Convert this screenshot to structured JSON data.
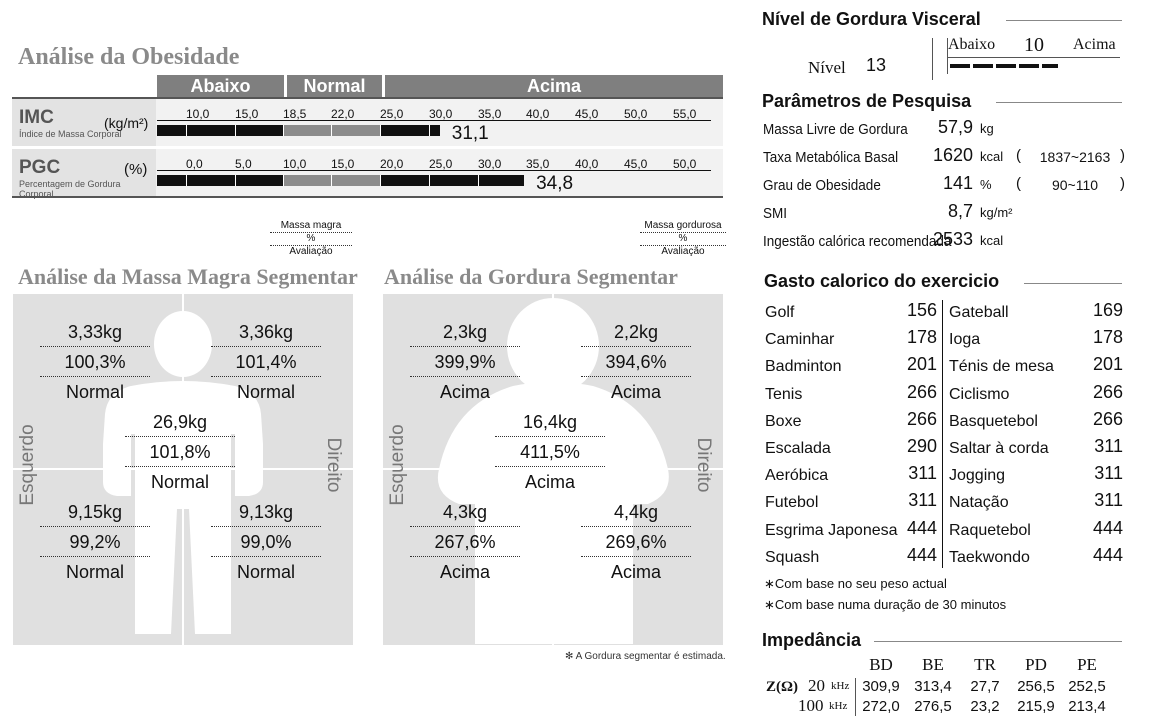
{
  "obesity": {
    "title": "Análise da Obesidade",
    "bands": {
      "below": "Abaixo",
      "normal": "Normal",
      "above": "Acima"
    },
    "imc": {
      "label": "IMC",
      "sublabel": "Índice de Massa Corporal",
      "unit": "(kg/m²)",
      "ticks": [
        "10,0",
        "15,0",
        "18,5",
        "22,0",
        "25,0",
        "30,0",
        "35,0",
        "40,0",
        "45,0",
        "50,0",
        "55,0"
      ],
      "value": "31,1",
      "value_num": 31.1
    },
    "pgc": {
      "label": "PGC",
      "sublabel": "Percentagem de Gordura Corporal",
      "unit": "(%)",
      "ticks": [
        "0,0",
        "5,0",
        "10,0",
        "15,0",
        "20,0",
        "25,0",
        "30,0",
        "35,0",
        "40,0",
        "45,0",
        "50,0"
      ],
      "value": "34,8",
      "value_num": 34.8
    }
  },
  "legend_lean": {
    "line1": "Massa magra",
    "line2": "%",
    "line3": "Avaliação"
  },
  "legend_fat": {
    "line1": "Massa gordurosa",
    "line2": "%",
    "line3": "Avaliação"
  },
  "lean": {
    "title": "Análise da Massa Magra Segmentar",
    "left_label": "Esquerdo",
    "right_label": "Direito",
    "left_arm": {
      "mass": "3,33kg",
      "pct": "100,3%",
      "eval": "Normal"
    },
    "right_arm": {
      "mass": "3,36kg",
      "pct": "101,4%",
      "eval": "Normal"
    },
    "trunk": {
      "mass": "26,9kg",
      "pct": "101,8%",
      "eval": "Normal"
    },
    "left_leg": {
      "mass": "9,15kg",
      "pct": "99,2%",
      "eval": "Normal"
    },
    "right_leg": {
      "mass": "9,13kg",
      "pct": "99,0%",
      "eval": "Normal"
    }
  },
  "fat": {
    "title": "Análise da Gordura Segmentar",
    "left_label": "Esquerdo",
    "right_label": "Direito",
    "left_arm": {
      "mass": "2,3kg",
      "pct": "399,9%",
      "eval": "Acima"
    },
    "right_arm": {
      "mass": "2,2kg",
      "pct": "394,6%",
      "eval": "Acima"
    },
    "trunk": {
      "mass": "16,4kg",
      "pct": "411,5%",
      "eval": "Acima"
    },
    "left_leg": {
      "mass": "4,3kg",
      "pct": "267,6%",
      "eval": "Acima"
    },
    "right_leg": {
      "mass": "4,4kg",
      "pct": "269,6%",
      "eval": "Acima"
    },
    "footnote": "✻ A Gordura segmentar é estimada."
  },
  "visceral": {
    "title": "Nível de Gordura Visceral",
    "level_label": "Nível",
    "level": "13",
    "below": "Abaixo",
    "threshold": "10",
    "above": "Acima"
  },
  "research": {
    "title": "Parâmetros de Pesquisa",
    "items": [
      {
        "name": "Massa Livre de Gordura",
        "value": "57,9",
        "unit": "kg",
        "range": ""
      },
      {
        "name": "Taxa Metabólica Basal",
        "value": "1620",
        "unit": "kcal",
        "range": "1837~2163"
      },
      {
        "name": "Grau de Obesidade",
        "value": "141",
        "unit": "%",
        "range": "90~110"
      },
      {
        "name": "SMI",
        "value": "8,7",
        "unit": "kg/m²",
        "range": ""
      },
      {
        "name": "Ingestão calórica recomendada",
        "value": "2533",
        "unit": "kcal",
        "range": ""
      }
    ]
  },
  "exercise": {
    "title": "Gasto calorico do exercicio",
    "left": [
      {
        "name": "Golf",
        "value": "156"
      },
      {
        "name": "Caminhar",
        "value": "178"
      },
      {
        "name": "Badminton",
        "value": "201"
      },
      {
        "name": "Tenis",
        "value": "266"
      },
      {
        "name": "Boxe",
        "value": "266"
      },
      {
        "name": "Escalada",
        "value": "290"
      },
      {
        "name": "Aeróbica",
        "value": "311"
      },
      {
        "name": "Futebol",
        "value": "311"
      },
      {
        "name": "Esgrima Japonesa",
        "value": "444"
      },
      {
        "name": "Squash",
        "value": "444"
      }
    ],
    "right": [
      {
        "name": "Gateball",
        "value": "169"
      },
      {
        "name": "Ioga",
        "value": "178"
      },
      {
        "name": "Ténis de mesa",
        "value": "201"
      },
      {
        "name": "Ciclismo",
        "value": "266"
      },
      {
        "name": "Basquetebol",
        "value": "266"
      },
      {
        "name": "Saltar à corda",
        "value": "311"
      },
      {
        "name": "Jogging",
        "value": "311"
      },
      {
        "name": "Natação",
        "value": "311"
      },
      {
        "name": "Raquetebol",
        "value": "444"
      },
      {
        "name": "Taekwondo",
        "value": "444"
      }
    ],
    "note1": "∗Com base no seu peso actual",
    "note2": "∗Com base numa duração de 30 minutos"
  },
  "impedance": {
    "title": "Impedância",
    "z_label": "Z(Ω)",
    "headers": [
      "BD",
      "BE",
      "TR",
      "PD",
      "PE"
    ],
    "rows": [
      {
        "freq": "20",
        "unit": "kHz",
        "values": [
          "309,9",
          "313,4",
          "27,7",
          "256,5",
          "252,5"
        ]
      },
      {
        "freq": "100",
        "unit": "kHz",
        "values": [
          "272,0",
          "276,5",
          "23,2",
          "215,9",
          "213,4"
        ]
      }
    ]
  }
}
